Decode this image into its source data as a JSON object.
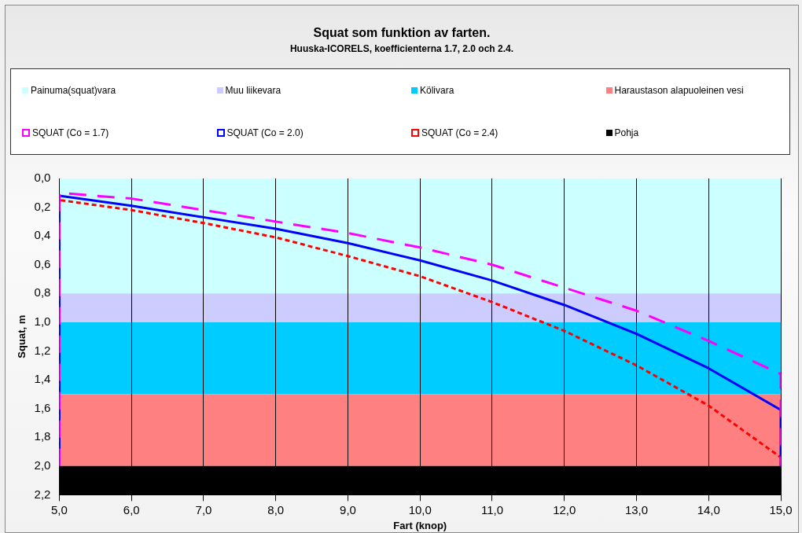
{
  "chart_data": {
    "type": "line",
    "title": "Squat som funktion av farten.",
    "subtitle": "Huuska-ICORELS, koefficienterna 1.7, 2.0 och 2.4.",
    "xlabel": "Fart (knop)",
    "ylabel": "Squat, m",
    "series": [
      {
        "name": "SQUAT (Co = 1.7)",
        "color": "#ff00ff",
        "line_style": "dashed",
        "x": [
          5,
          5,
          6,
          7,
          8,
          9,
          10,
          11,
          12,
          13,
          14,
          15,
          15
        ],
        "values": [
          2.0,
          0.1,
          0.14,
          0.22,
          0.3,
          0.38,
          0.48,
          0.6,
          0.76,
          0.92,
          1.13,
          1.36,
          2.0
        ]
      },
      {
        "name": "SQUAT (Co = 2.0)",
        "color": "#0000ff",
        "line_style": "solid",
        "x": [
          5,
          5,
          6,
          7,
          8,
          9,
          10,
          11,
          12,
          13,
          14,
          15,
          15
        ],
        "values": [
          2.0,
          0.12,
          0.19,
          0.27,
          0.35,
          0.45,
          0.57,
          0.71,
          0.88,
          1.08,
          1.32,
          1.61,
          2.0
        ]
      },
      {
        "name": "SQUAT (Co = 2.4)",
        "color": "#ff0000",
        "line_style": "dotted",
        "x": [
          5,
          5,
          6,
          7,
          8,
          9,
          10,
          11,
          12,
          13,
          14,
          15,
          15
        ],
        "values": [
          2.0,
          0.15,
          0.22,
          0.31,
          0.41,
          0.54,
          0.68,
          0.86,
          1.06,
          1.3,
          1.58,
          1.94,
          2.0
        ]
      }
    ],
    "bands": [
      {
        "axis": "y",
        "from": 0,
        "to": 0.8,
        "label": "Painuma(squat)vara",
        "color": "#ccffff"
      },
      {
        "axis": "y",
        "from": 0.8,
        "to": 1.0,
        "label": "Muu liikevara",
        "color": "#ccccff"
      },
      {
        "axis": "y",
        "from": 1.0,
        "to": 1.5,
        "label": "Kölivara",
        "color": "#00ccff"
      },
      {
        "axis": "y",
        "from": 1.5,
        "to": 2.0,
        "label": "Haraustason alapuoleinen vesi",
        "color": "#ff8080"
      },
      {
        "axis": "y",
        "from": 2.0,
        "to": 2.2,
        "label": "Pohja",
        "color": "#000000"
      }
    ],
    "xlim": [
      5,
      15
    ],
    "xticks": [
      {
        "value": 5,
        "label": "5,0"
      },
      {
        "value": 6,
        "label": "6,0"
      },
      {
        "value": 7,
        "label": "7,0"
      },
      {
        "value": 8,
        "label": "8,0"
      },
      {
        "value": 9,
        "label": "9,0"
      },
      {
        "value": 10,
        "label": "10,0"
      },
      {
        "value": 11,
        "label": "11,0"
      },
      {
        "value": 12,
        "label": "12,0"
      },
      {
        "value": 13,
        "label": "13,0"
      },
      {
        "value": 14,
        "label": "14,0"
      },
      {
        "value": 15,
        "label": "15,0"
      }
    ],
    "ylim": [
      2.2,
      0
    ],
    "yticks": [
      {
        "value": 0,
        "label": "0,0"
      },
      {
        "value": 0.2,
        "label": "0,2"
      },
      {
        "value": 0.4,
        "label": "0,4"
      },
      {
        "value": 0.6,
        "label": "0,6"
      },
      {
        "value": 0.8,
        "label": "0,8"
      },
      {
        "value": 1.0,
        "label": "1,0"
      },
      {
        "value": 1.2,
        "label": "1,2"
      },
      {
        "value": 1.4,
        "label": "1,4"
      },
      {
        "value": 1.6,
        "label": "1,6"
      },
      {
        "value": 1.8,
        "label": "1,8"
      },
      {
        "value": 2.0,
        "label": "2,0"
      },
      {
        "value": 2.2,
        "label": "2,2"
      }
    ],
    "grid": "x",
    "legend": "top",
    "marker": "none"
  }
}
